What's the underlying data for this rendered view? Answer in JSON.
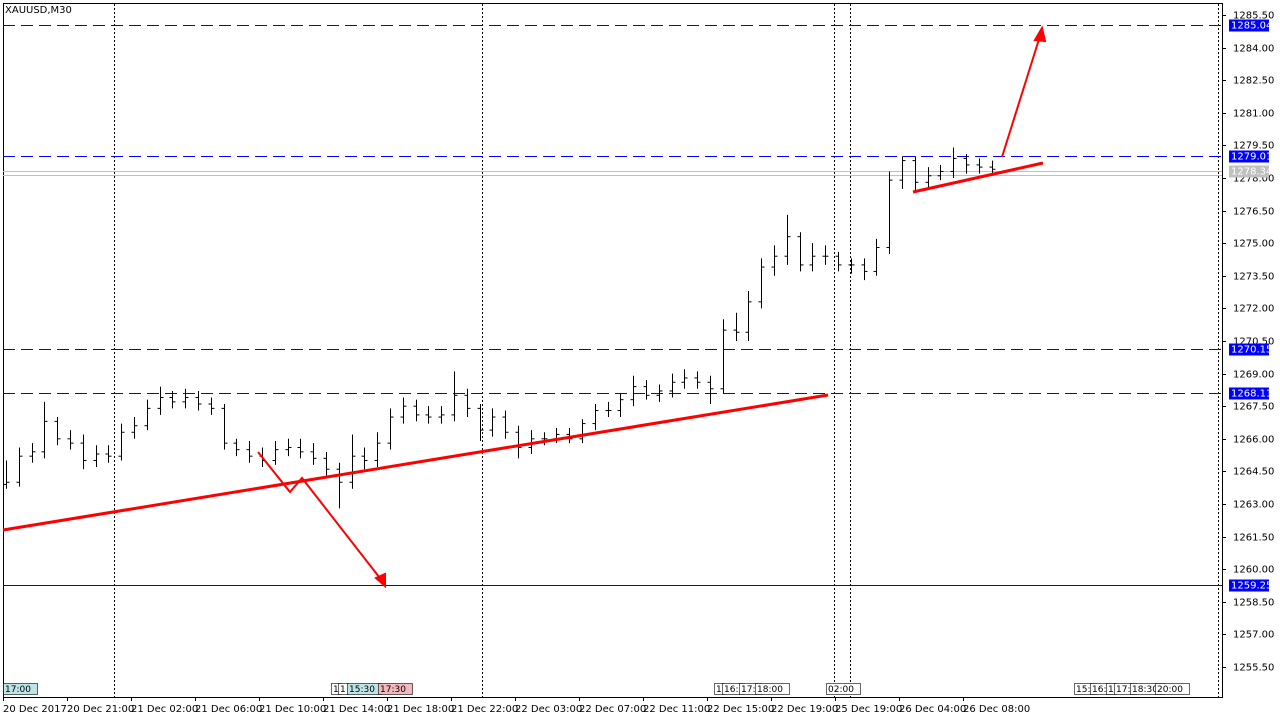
{
  "chart_data": {
    "type": "ohlc",
    "title": "XAUUSD,M30",
    "open": [
      1263.9,
      1264.0,
      1265.2,
      1265.4,
      1266.8,
      1266.0,
      1265.8,
      1265.0,
      1265.3,
      1265.2,
      1266.3,
      1266.6,
      1267.4,
      1267.9,
      1267.7,
      1267.9,
      1267.6,
      1267.4,
      1265.8,
      1265.5,
      1265.2,
      1265.0,
      1265.5,
      1265.6,
      1265.4,
      1265.1,
      1264.6,
      1264.0,
      1265.2,
      1265.0,
      1265.8,
      1267.0,
      1267.5,
      1267.1,
      1267.0,
      1267.1,
      1268.0,
      1267.4,
      1266.4,
      1267.0,
      1266.3,
      1265.6,
      1266.0,
      1266.0,
      1266.2,
      1266.0,
      1266.7,
      1267.3,
      1267.3,
      1267.8,
      1268.4,
      1268.0,
      1268.2,
      1268.6,
      1268.8,
      1268.6,
      1268.3,
      1271.0,
      1270.9,
      1272.3,
      1273.9,
      1274.4,
      1275.3,
      1274.0,
      1274.4,
      1274.4,
      1274.0,
      1274.0,
      1273.7,
      1274.8,
      1277.9,
      1278.8,
      1277.8,
      1278.1,
      1278.3,
      1278.9,
      1278.6,
      1278.5
    ],
    "high": [
      1265.0,
      1265.6,
      1265.8,
      1267.7,
      1267.0,
      1266.4,
      1266.2,
      1265.7,
      1265.7,
      1266.7,
      1267.0,
      1267.8,
      1268.4,
      1268.2,
      1268.3,
      1268.2,
      1267.9,
      1267.6,
      1266.0,
      1265.9,
      1265.6,
      1265.9,
      1266.0,
      1266.0,
      1265.8,
      1265.4,
      1264.9,
      1266.2,
      1265.6,
      1266.3,
      1267.4,
      1267.9,
      1267.8,
      1267.5,
      1267.5,
      1269.1,
      1268.3,
      1267.6,
      1267.4,
      1267.3,
      1266.6,
      1266.4,
      1266.3,
      1266.5,
      1266.5,
      1266.9,
      1267.6,
      1267.7,
      1268.1,
      1268.9,
      1268.7,
      1268.5,
      1269.0,
      1269.2,
      1269.1,
      1268.9,
      1271.5,
      1271.8,
      1272.8,
      1274.3,
      1274.9,
      1276.3,
      1275.5,
      1275.0,
      1274.9,
      1274.6,
      1274.3,
      1274.3,
      1275.2,
      1278.3,
      1279.0,
      1279.0,
      1278.5,
      1278.6,
      1279.4,
      1279.1,
      1278.9,
      1278.8
    ],
    "low": [
      1263.7,
      1263.8,
      1264.9,
      1265.1,
      1265.7,
      1265.5,
      1264.6,
      1264.7,
      1264.9,
      1265.0,
      1266.0,
      1266.4,
      1267.1,
      1267.4,
      1267.4,
      1267.3,
      1267.1,
      1265.5,
      1265.2,
      1264.9,
      1264.7,
      1264.8,
      1265.2,
      1265.1,
      1264.8,
      1264.3,
      1262.8,
      1263.7,
      1264.6,
      1264.7,
      1265.5,
      1266.7,
      1266.8,
      1266.7,
      1266.7,
      1266.8,
      1267.0,
      1265.9,
      1266.1,
      1266.0,
      1265.1,
      1265.3,
      1265.7,
      1265.8,
      1265.8,
      1265.8,
      1266.4,
      1267.0,
      1267.0,
      1267.5,
      1267.8,
      1267.7,
      1267.9,
      1268.3,
      1268.3,
      1267.6,
      1268.1,
      1270.5,
      1270.5,
      1272.0,
      1273.5,
      1274.0,
      1273.7,
      1273.7,
      1274.0,
      1273.7,
      1273.6,
      1273.3,
      1273.5,
      1274.5,
      1277.5,
      1277.4,
      1277.5,
      1277.9,
      1278.0,
      1278.2,
      1278.2,
      1278.1
    ],
    "close": [
      1264.0,
      1265.2,
      1265.4,
      1266.8,
      1266.0,
      1265.8,
      1265.0,
      1265.3,
      1265.2,
      1266.3,
      1266.6,
      1267.4,
      1267.9,
      1267.7,
      1267.9,
      1267.6,
      1267.4,
      1265.8,
      1265.5,
      1265.2,
      1265.0,
      1265.5,
      1265.6,
      1265.4,
      1265.1,
      1264.6,
      1264.0,
      1265.2,
      1265.0,
      1265.8,
      1267.0,
      1267.5,
      1267.1,
      1267.0,
      1267.1,
      1268.0,
      1267.4,
      1266.4,
      1267.0,
      1266.3,
      1265.6,
      1266.0,
      1266.0,
      1266.2,
      1266.0,
      1266.7,
      1267.3,
      1267.3,
      1267.8,
      1268.4,
      1268.0,
      1268.2,
      1268.6,
      1268.8,
      1268.6,
      1268.3,
      1271.0,
      1270.9,
      1272.3,
      1273.9,
      1274.4,
      1275.3,
      1274.0,
      1274.4,
      1274.4,
      1274.0,
      1274.0,
      1273.7,
      1274.8,
      1277.9,
      1278.8,
      1277.8,
      1278.1,
      1278.3,
      1278.9,
      1278.6,
      1278.5,
      1278.4
    ],
    "color": "#000000",
    "ylim": [
      1254.12,
      1286.05
    ],
    "yticks": [
      {
        "value": 1285.5,
        "label": "1285.50"
      },
      {
        "value": 1284,
        "label": "1284.00"
      },
      {
        "value": 1282.5,
        "label": "1282.50"
      },
      {
        "value": 1281,
        "label": "1281.00"
      },
      {
        "value": 1279.5,
        "label": "1279.50"
      },
      {
        "value": 1278,
        "label": "1278.00"
      },
      {
        "value": 1276.5,
        "label": "1276.50"
      },
      {
        "value": 1275,
        "label": "1275.00"
      },
      {
        "value": 1273.5,
        "label": "1273.50"
      },
      {
        "value": 1272,
        "label": "1272.00"
      },
      {
        "value": 1270.5,
        "label": "1270.50"
      },
      {
        "value": 1269,
        "label": "1269.00"
      },
      {
        "value": 1267.5,
        "label": "1267.50"
      },
      {
        "value": 1266,
        "label": "1266.00"
      },
      {
        "value": 1264.5,
        "label": "1264.50"
      },
      {
        "value": 1263,
        "label": "1263.00"
      },
      {
        "value": 1261.5,
        "label": "1261.50"
      },
      {
        "value": 1260,
        "label": "1260.00"
      },
      {
        "value": 1258.5,
        "label": "1258.50"
      },
      {
        "value": 1257,
        "label": "1257.00"
      },
      {
        "value": 1255.5,
        "label": "1255.50"
      }
    ],
    "x_labels": [
      "20 Dec 2017",
      "20 Dec 21:00",
      "21 Dec 02:00",
      "21 Dec 06:00",
      "21 Dec 10:00",
      "21 Dec 14:00",
      "21 Dec 18:00",
      "21 Dec 22:00",
      "22 Dec 03:00",
      "22 Dec 07:00",
      "22 Dec 11:00",
      "22 Dec 15:00",
      "22 Dec 19:00",
      "25 Dec 19:00",
      "26 Dec 04:00",
      "26 Dec 08:00"
    ],
    "dashed_levels": [
      1285.04,
      1279.01,
      1270.15,
      1268.11
    ],
    "solid_levels": [
      1259.25
    ],
    "level_color": "#0000ff",
    "price_level": 1278.34,
    "price_color": "#c0c0c0",
    "time_markers": [
      "17:00",
      "1",
      "1",
      "15:30",
      "17:30",
      "1",
      "16:",
      "17:",
      "18:00",
      "02:00",
      "15:",
      "16:",
      "1",
      "17:",
      "18:30",
      "20:00"
    ]
  }
}
